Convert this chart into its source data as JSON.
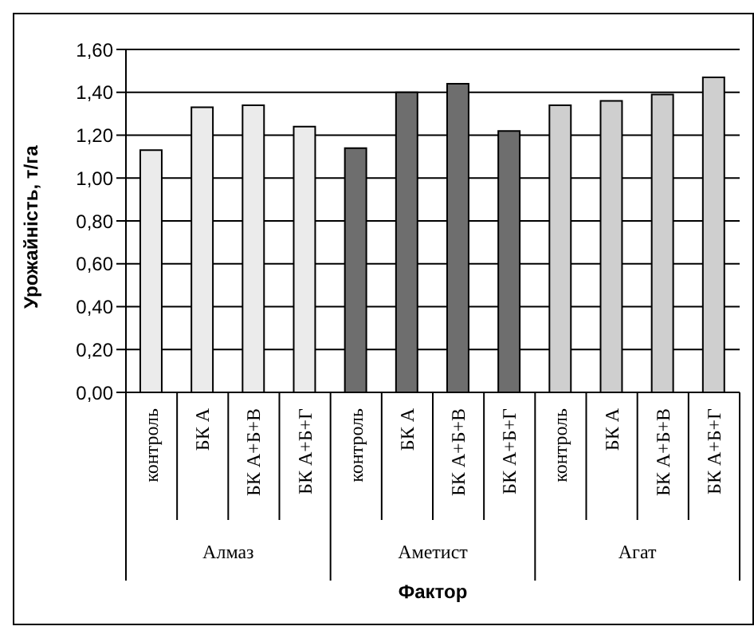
{
  "chart_data": {
    "type": "bar",
    "xlabel": "Фактор",
    "ylabel": "Урожайність, т/га",
    "categories": [
      "контроль",
      "БК А",
      "БК А+Б+В",
      "БК А+Б+Г",
      "контроль",
      "БК А",
      "БК А+Б+В",
      "БК А+Б+Г",
      "контроль",
      "БК А",
      "БК А+Б+В",
      "БК А+Б+Г"
    ],
    "values": [
      1.13,
      1.33,
      1.34,
      1.24,
      1.14,
      1.4,
      1.44,
      1.22,
      1.34,
      1.36,
      1.39,
      1.47
    ],
    "colors": [
      "#ebebeb",
      "#ebebeb",
      "#ebebeb",
      "#ebebeb",
      "#6e6e6e",
      "#6e6e6e",
      "#6e6e6e",
      "#6e6e6e",
      "#cfcfcf",
      "#cfcfcf",
      "#cfcfcf",
      "#cfcfcf"
    ],
    "annotations": [
      "Алмаз",
      "Аметист",
      "Агат"
    ],
    "ylim": [
      0,
      1.6
    ],
    "yticks": [
      {
        "value": 0,
        "label": "0,00"
      },
      {
        "value": 0.2,
        "label": "0,20"
      },
      {
        "value": 0.4,
        "label": "0,40"
      },
      {
        "value": 0.6,
        "label": "0,60"
      },
      {
        "value": 0.8,
        "label": "0,80"
      },
      {
        "value": 1,
        "label": "1,00"
      },
      {
        "value": 1.2,
        "label": "1,20"
      },
      {
        "value": 1.4,
        "label": "1,40"
      },
      {
        "value": 1.6,
        "label": "1,60"
      }
    ],
    "grid": "y",
    "legend": false
  }
}
